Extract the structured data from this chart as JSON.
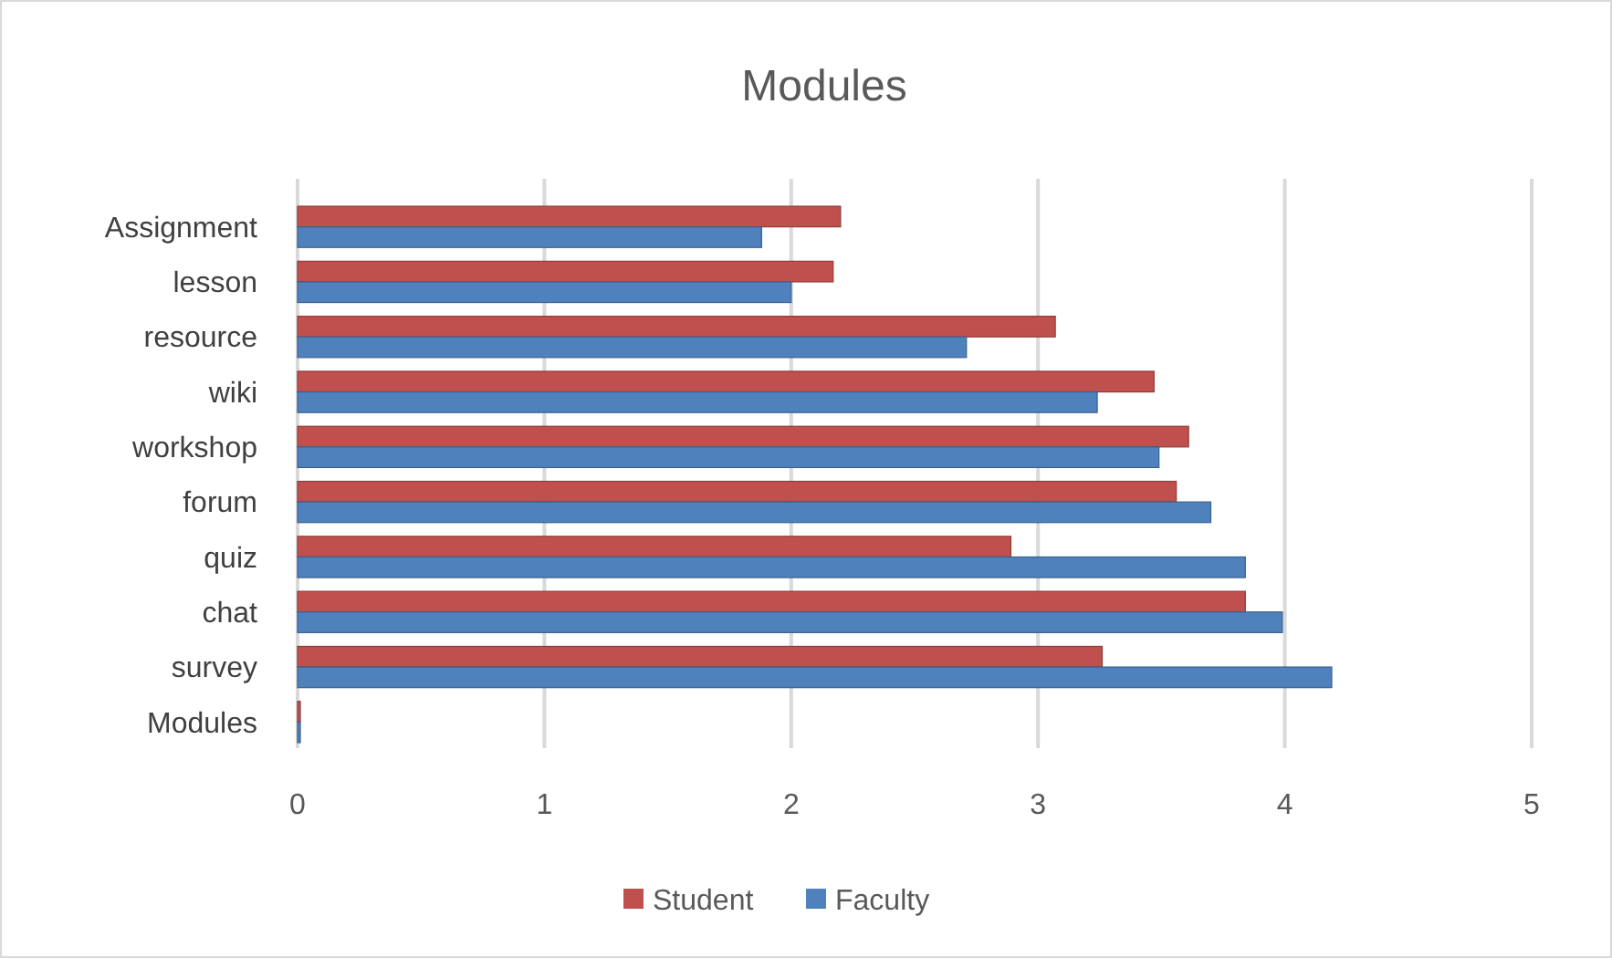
{
  "chart_data": {
    "type": "bar",
    "orientation": "horizontal",
    "title": "Modules",
    "categories": [
      "Assignment",
      "lesson",
      "resource",
      "wiki",
      "workshop",
      "forum",
      "quiz",
      "chat",
      "survey",
      "Modules"
    ],
    "series": [
      {
        "name": "Student",
        "color": "#c0504d",
        "values": [
          2.2,
          2.17,
          3.07,
          3.47,
          3.61,
          3.56,
          2.89,
          3.84,
          3.26,
          0
        ]
      },
      {
        "name": "Faculty",
        "color": "#4f81bd",
        "values": [
          1.88,
          2.0,
          2.71,
          3.24,
          3.49,
          3.7,
          3.84,
          3.99,
          4.19,
          0
        ]
      }
    ],
    "xlim": [
      0,
      5
    ],
    "xticks": [
      0,
      1,
      2,
      3,
      4,
      5
    ],
    "grid": "x",
    "legend": "bottom"
  }
}
